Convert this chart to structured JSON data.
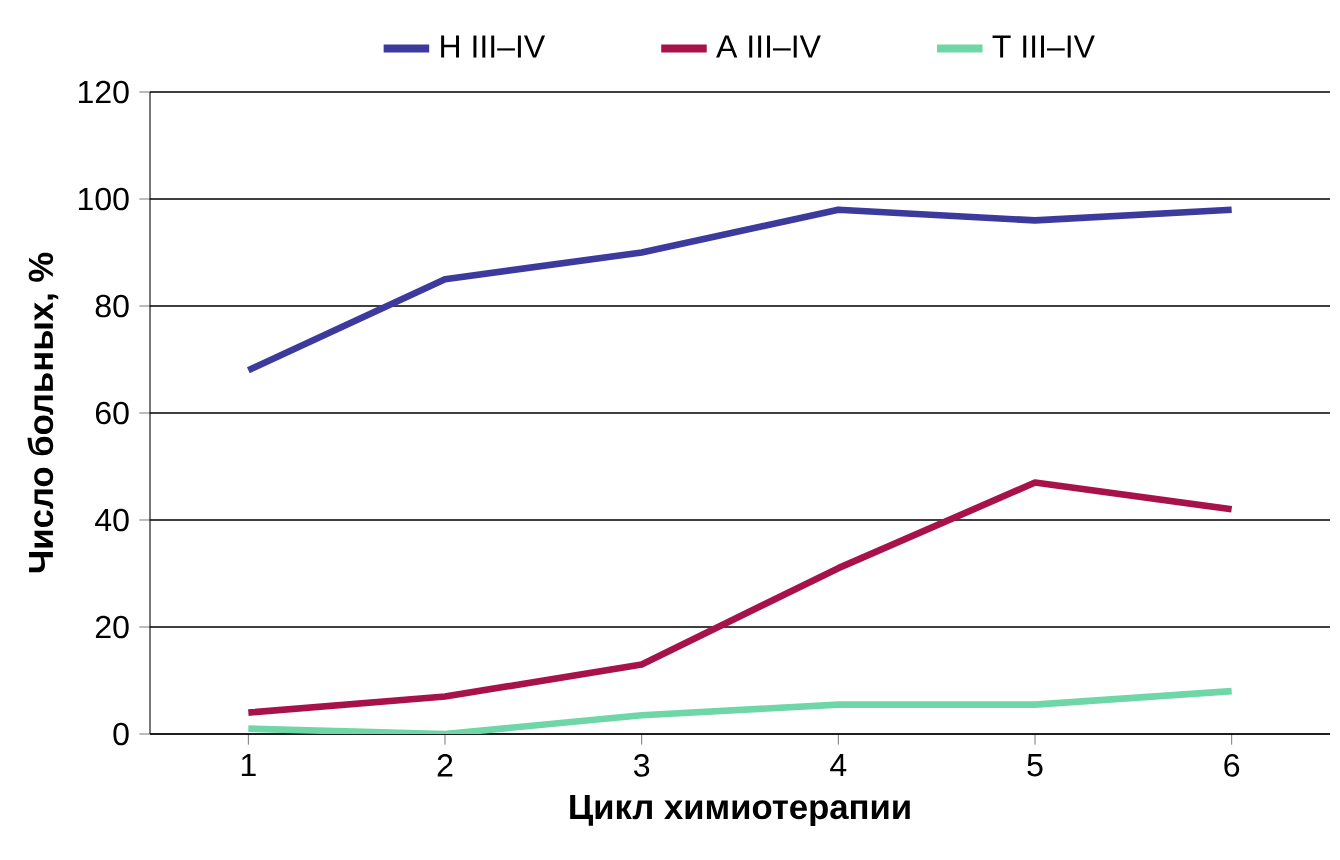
{
  "chart_data": {
    "type": "line",
    "xlabel": "Цикл химиотерапии",
    "ylabel": "Число больных, %",
    "x": [
      1,
      2,
      3,
      4,
      5,
      6
    ],
    "series": [
      {
        "name": "H III–IV",
        "color": "#3d3a9e",
        "values": [
          68,
          85,
          90,
          98,
          96,
          98
        ]
      },
      {
        "name": "A III–IV",
        "color": "#a8124a",
        "values": [
          4,
          7,
          13,
          31,
          47,
          42
        ]
      },
      {
        "name": "T III–IV",
        "color": "#6fd6a8",
        "values": [
          1,
          0,
          3.5,
          5.5,
          5.5,
          8
        ]
      }
    ],
    "xlim": [
      0.5,
      6.5
    ],
    "ylim": [
      0,
      120
    ],
    "xticks": [
      1,
      2,
      3,
      4,
      5,
      6
    ],
    "yticks": [
      0,
      20,
      40,
      60,
      80,
      100,
      120
    ],
    "grid": "y",
    "legend": "top",
    "marker": "none",
    "line_style": "solid"
  }
}
